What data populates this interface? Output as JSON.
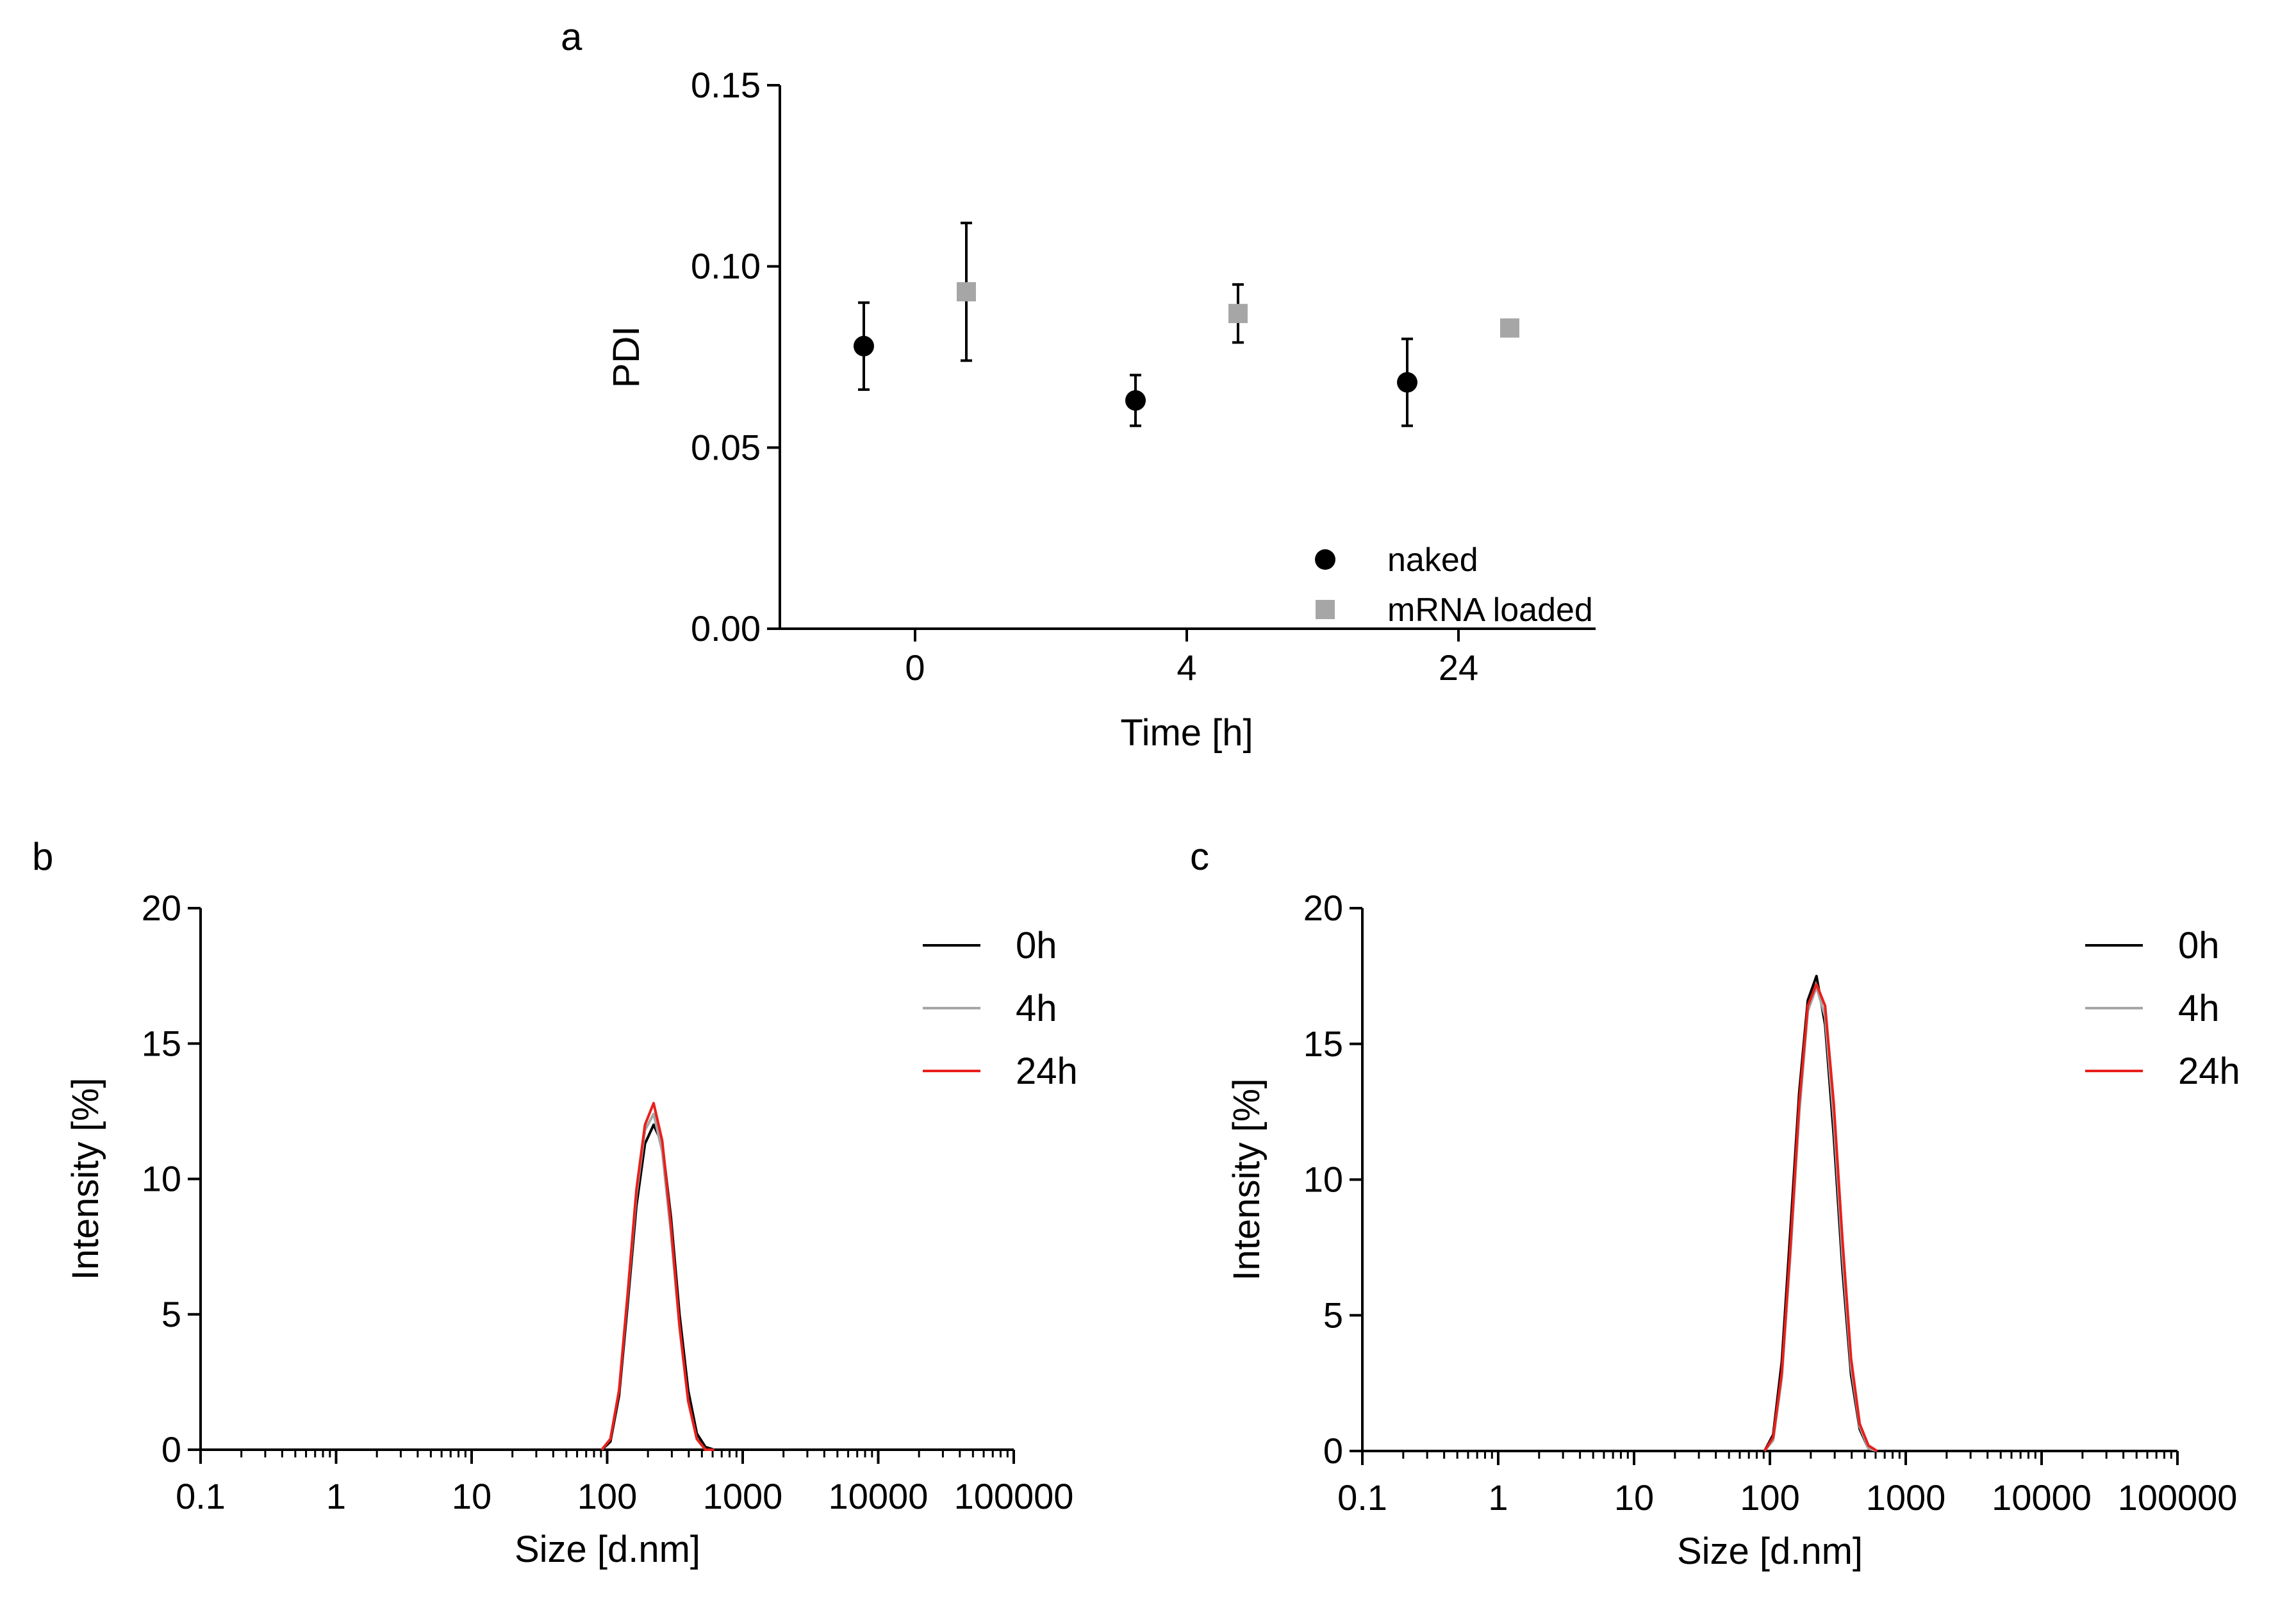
{
  "chart_data": [
    {
      "id": "a",
      "panel_label": "a",
      "type": "scatter",
      "categories": [
        "0",
        "4",
        "24"
      ],
      "xlabel": "Time [h]",
      "ylabel": "PDI",
      "ylim": [
        0,
        0.15
      ],
      "yticks": [
        0.0,
        0.05,
        0.1,
        0.15
      ],
      "ytick_labels": [
        "0.00",
        "0.05",
        "0.10",
        "0.15"
      ],
      "legend_position": "bottom-right",
      "series": [
        {
          "name": "naked",
          "marker": "circle",
          "color": "#000000",
          "values": [
            0.078,
            0.063,
            0.068
          ],
          "errors": [
            0.012,
            0.007,
            0.012
          ]
        },
        {
          "name": "mRNA loaded",
          "marker": "square",
          "color": "#a6a6a6",
          "values": [
            0.093,
            0.087,
            0.083
          ],
          "errors": [
            0.019,
            0.008,
            0.002
          ]
        }
      ]
    },
    {
      "id": "b",
      "panel_label": "b",
      "type": "line",
      "xscale": "log",
      "xlim": [
        0.1,
        100000
      ],
      "xtick_labels": [
        "0.1",
        "1",
        "10",
        "100",
        "1000",
        "10000",
        "100000"
      ],
      "ylim": [
        0,
        20
      ],
      "ytick_labels": [
        "0",
        "5",
        "10",
        "15",
        "20"
      ],
      "xlabel": "Size [d.nm]",
      "ylabel": "Intensity [%]",
      "legend_position": "top-right",
      "x": [
        91.3,
        105.7,
        122.4,
        141.8,
        164.2,
        190.1,
        220.2,
        255.0,
        295.3,
        342.0,
        396.1,
        458.7,
        531.2,
        615.1
      ],
      "series": [
        {
          "name": "0h",
          "color": "#000000",
          "values": [
            0,
            0.3,
            2.0,
            5.4,
            9.0,
            11.3,
            12.0,
            11.3,
            8.6,
            5.0,
            2.2,
            0.6,
            0.1,
            0
          ]
        },
        {
          "name": "4h",
          "color": "#a6a6a6",
          "values": [
            0,
            0.4,
            2.2,
            5.7,
            9.4,
            11.8,
            12.4,
            11.0,
            8.0,
            4.5,
            1.8,
            0.4,
            0,
            0
          ]
        },
        {
          "name": "24h",
          "color": "#e8201c",
          "values": [
            0,
            0.4,
            2.2,
            5.8,
            9.6,
            12.0,
            12.8,
            11.4,
            8.3,
            4.6,
            1.8,
            0.4,
            0,
            0
          ]
        }
      ]
    },
    {
      "id": "c",
      "panel_label": "c",
      "type": "line",
      "xscale": "log",
      "xlim": [
        0.1,
        100000
      ],
      "xtick_labels": [
        "0.1",
        "1",
        "10",
        "100",
        "1000",
        "10000",
        "100000"
      ],
      "ylim": [
        0,
        20
      ],
      "ytick_labels": [
        "0",
        "5",
        "10",
        "15",
        "20"
      ],
      "xlabel": "Size [d.nm]",
      "ylabel": "Intensity [%]",
      "legend_position": "top-right",
      "x": [
        91.3,
        105.7,
        122.4,
        141.8,
        164.2,
        190.1,
        220.2,
        255.0,
        295.3,
        342.0,
        396.1,
        458.7,
        531.2,
        615.1
      ],
      "series": [
        {
          "name": "0h",
          "color": "#000000",
          "values": [
            0,
            0.6,
            3.3,
            8.2,
            13.2,
            16.6,
            17.5,
            15.7,
            11.6,
            6.7,
            2.8,
            0.8,
            0.1,
            0
          ]
        },
        {
          "name": "4h",
          "color": "#a6a6a6",
          "values": [
            0,
            0.4,
            2.7,
            7.3,
            12.4,
            16.2,
            17.1,
            16.0,
            12.2,
            7.2,
            3.1,
            0.9,
            0.1,
            0
          ]
        },
        {
          "name": "24h",
          "color": "#e8201c",
          "values": [
            0,
            0.5,
            2.9,
            7.6,
            12.8,
            16.4,
            17.2,
            16.4,
            12.8,
            7.8,
            3.4,
            1.0,
            0.2,
            0
          ]
        }
      ]
    }
  ]
}
